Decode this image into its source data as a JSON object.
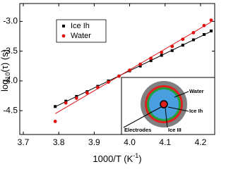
{
  "chart_data": {
    "type": "scatter",
    "xlabel": [
      "1000/T (K",
      "-1",
      ")"
    ],
    "ylabel": [
      "log",
      "10",
      "(τ) (s)"
    ],
    "xlim": [
      3.69,
      4.24
    ],
    "ylim": [
      -4.9,
      -2.7
    ],
    "xticks": [
      3.7,
      3.8,
      3.9,
      {
        "value": 4.0,
        "label": "4.0"
      },
      4.1,
      4.2
    ],
    "yticks": [
      {
        "value": -3.0,
        "label": "-3.0"
      },
      -3.5,
      {
        "value": -4.0,
        "label": "-4.0"
      },
      -4.5
    ],
    "fit_lines": true,
    "series": [
      {
        "name": "Ice Ih",
        "color": "#000000",
        "marker": "square",
        "x": [
          3.79,
          3.82,
          3.85,
          3.88,
          3.91,
          3.94,
          3.97,
          4.0,
          4.03,
          4.06,
          4.09,
          4.12,
          4.15,
          4.18,
          4.21,
          4.23
        ],
        "values": [
          -4.43,
          -4.34,
          -4.26,
          -4.18,
          -4.09,
          -4.0,
          -3.92,
          -3.83,
          -3.75,
          -3.66,
          -3.57,
          -3.49,
          -3.4,
          -3.31,
          -3.22,
          -3.16
        ]
      },
      {
        "name": "Water",
        "color": "#e01010",
        "marker": "circle",
        "x": [
          3.79,
          3.82,
          3.85,
          3.88,
          3.91,
          3.94,
          3.97,
          4.0,
          4.03,
          4.06,
          4.09,
          4.12,
          4.15,
          4.18,
          4.21,
          4.23
        ],
        "values": [
          -4.68,
          -4.37,
          -4.29,
          -4.2,
          -4.11,
          -4.02,
          -3.92,
          -3.82,
          -3.72,
          -3.62,
          -3.52,
          -3.42,
          -3.3,
          -3.19,
          -3.07,
          -2.98
        ]
      }
    ],
    "inset": {
      "labels": [
        "Water",
        "Ice Ih",
        "Ice III",
        "Electrodes"
      ]
    }
  }
}
